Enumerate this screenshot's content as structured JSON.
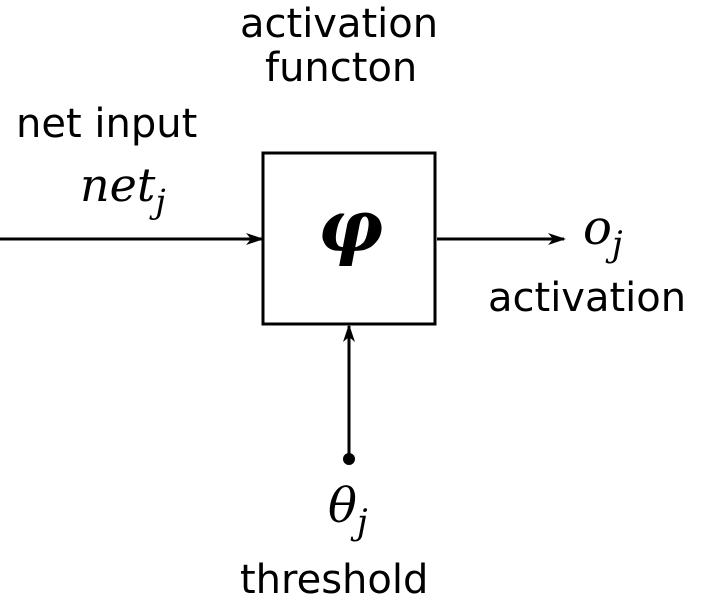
{
  "top_label": {
    "line1": "activation",
    "line2": "functon"
  },
  "input": {
    "label": "net input",
    "symbol": "net",
    "subscript": "j"
  },
  "block": {
    "symbol": "φ"
  },
  "output": {
    "symbol": "o",
    "subscript": "j",
    "label": "activation"
  },
  "threshold": {
    "symbol": "θ",
    "subscript": "j",
    "label": "threshold"
  }
}
